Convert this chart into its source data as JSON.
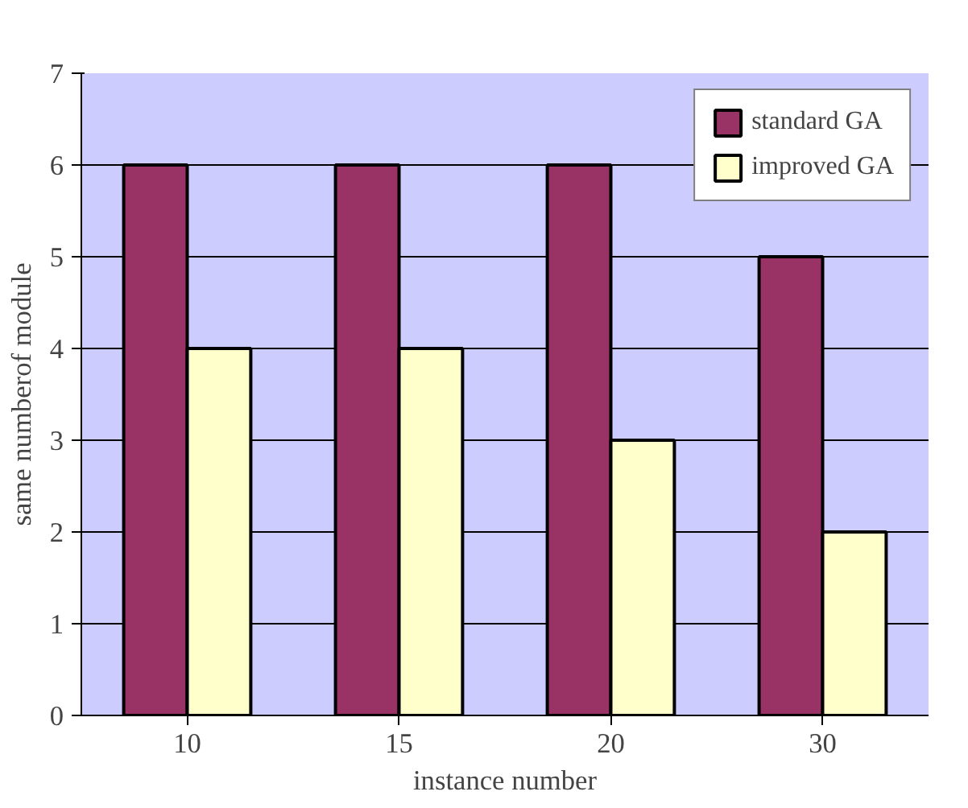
{
  "chart_data": {
    "type": "bar",
    "xlabel": "instance number",
    "ylabel": "same numberof module",
    "categories": [
      "10",
      "15",
      "20",
      "30"
    ],
    "series": [
      {
        "name": "standard GA",
        "color": "#993366",
        "values": [
          6,
          6,
          6,
          5
        ]
      },
      {
        "name": "improved GA",
        "color": "#ffffcc",
        "values": [
          4,
          4,
          3,
          2
        ]
      }
    ],
    "ylim": [
      0,
      7
    ],
    "yticks": [
      0,
      1,
      2,
      3,
      4,
      5,
      6,
      7
    ],
    "grid": "y",
    "legend": "top right"
  }
}
